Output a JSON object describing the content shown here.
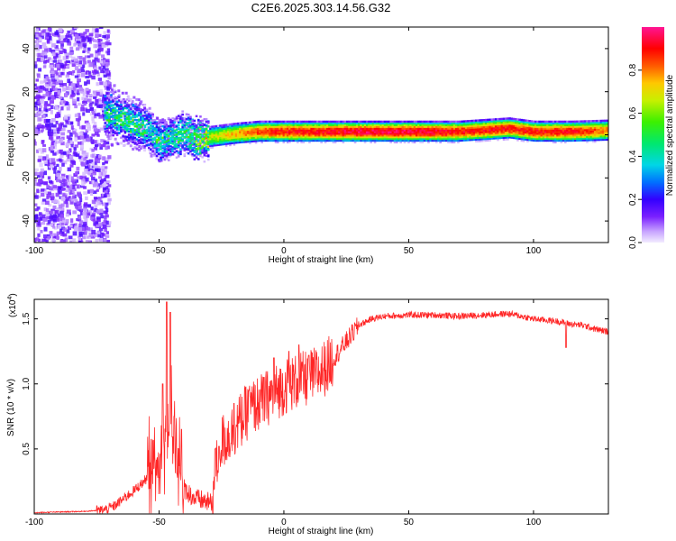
{
  "title": "C2E6.2025.303.14.56.G32",
  "chart_data": [
    {
      "type": "heatmap",
      "xlabel": "Height of straight line (km)",
      "ylabel": "Frequency (Hz)",
      "xlim": [
        -100,
        130
      ],
      "ylim": [
        -50,
        50
      ],
      "xticks": [
        -100,
        -50,
        0,
        50,
        100
      ],
      "yticks": [
        -40,
        -20,
        0,
        20,
        40
      ],
      "colorbar": {
        "label": "Normalized spectral amplitude",
        "range": [
          0,
          1
        ],
        "ticks": [
          "0.0",
          "0.2",
          "0.4",
          "0.6",
          "0.8"
        ],
        "tick_values": [
          0.0,
          0.2,
          0.4,
          0.6,
          0.8
        ]
      },
      "ridge": [
        {
          "x": -70,
          "f": 10,
          "amp": 0.45
        },
        {
          "x": -65,
          "f": 8,
          "amp": 0.5
        },
        {
          "x": -60,
          "f": 5,
          "amp": 0.5
        },
        {
          "x": -55,
          "f": 3,
          "amp": 0.5
        },
        {
          "x": -50,
          "f": -3,
          "amp": 0.45
        },
        {
          "x": -45,
          "f": -1,
          "amp": 0.5
        },
        {
          "x": -40,
          "f": 1,
          "amp": 0.55
        },
        {
          "x": -35,
          "f": -2,
          "amp": 0.6
        },
        {
          "x": -30,
          "f": -1,
          "amp": 0.65
        },
        {
          "x": -20,
          "f": 0.5,
          "amp": 0.75
        },
        {
          "x": -10,
          "f": 1.5,
          "amp": 0.85
        },
        {
          "x": 0,
          "f": 1.5,
          "amp": 0.9
        },
        {
          "x": 10,
          "f": 1.5,
          "amp": 0.9
        },
        {
          "x": 30,
          "f": 1.5,
          "amp": 0.95
        },
        {
          "x": 50,
          "f": 1.5,
          "amp": 0.95
        },
        {
          "x": 70,
          "f": 1.5,
          "amp": 0.9
        },
        {
          "x": 90,
          "f": 3,
          "amp": 0.9
        },
        {
          "x": 100,
          "f": 1.5,
          "amp": 0.9
        },
        {
          "x": 115,
          "f": 1.5,
          "amp": 0.9
        },
        {
          "x": 130,
          "f": 2,
          "amp": 0.8
        }
      ]
    },
    {
      "type": "line",
      "xlabel": "Height of straight line (km)",
      "ylabel": "SNR (10 * v/v)",
      "yscale_note": "(x10",
      "yscale_exp": "4",
      "yscale_close": ")",
      "xlim": [
        -100,
        130
      ],
      "ylim": [
        0,
        1.65
      ],
      "xticks": [
        -100,
        -50,
        0,
        50,
        100
      ],
      "yticks": [
        "0.5",
        "1.0",
        "1.5"
      ],
      "ytick_values": [
        0.5,
        1.0,
        1.5
      ],
      "series": [
        {
          "name": "SNR",
          "color": "#ff0000",
          "x": [
            -100,
            -80,
            -72,
            -68,
            -64,
            -60,
            -56,
            -52,
            -50,
            -48,
            -46,
            -44,
            -42,
            -40,
            -36,
            -32,
            -29,
            -27,
            -25,
            -22,
            -18,
            -14,
            -10,
            -6,
            -2,
            2,
            6,
            10,
            14,
            18,
            22,
            26,
            30,
            35,
            40,
            50,
            60,
            70,
            80,
            90,
            100,
            110,
            115,
            120,
            125,
            130
          ],
          "y": [
            0.01,
            0.02,
            0.03,
            0.06,
            0.12,
            0.18,
            0.25,
            0.35,
            0.45,
            0.6,
            0.7,
            0.55,
            0.35,
            0.2,
            0.12,
            0.1,
            0.08,
            0.35,
            0.55,
            0.6,
            0.7,
            0.8,
            0.85,
            0.9,
            0.95,
            1.0,
            1.02,
            1.05,
            1.08,
            1.15,
            1.25,
            1.35,
            1.45,
            1.5,
            1.52,
            1.53,
            1.53,
            1.52,
            1.53,
            1.54,
            1.5,
            1.48,
            1.46,
            1.45,
            1.42,
            1.4
          ]
        }
      ],
      "spikes": [
        {
          "x": -47,
          "y": 1.63
        },
        {
          "x": -45.5,
          "y": 1.55
        },
        {
          "x": -48.5,
          "y": 1.0
        },
        {
          "x": -44,
          "y": 0.75
        },
        {
          "x": -41,
          "y": 0.65
        },
        {
          "x": -27.5,
          "y": 0.5
        },
        {
          "x": -26,
          "y": 0.52
        },
        {
          "x": -20,
          "y": 0.85
        },
        {
          "x": -14,
          "y": 0.95
        },
        {
          "x": -8,
          "y": 1.05
        },
        {
          "x": -4,
          "y": 1.2
        },
        {
          "x": 2,
          "y": 1.25
        },
        {
          "x": 6,
          "y": 1.3
        },
        {
          "x": 10,
          "y": 1.22
        },
        {
          "x": 113,
          "y": 1.28
        }
      ]
    }
  ]
}
